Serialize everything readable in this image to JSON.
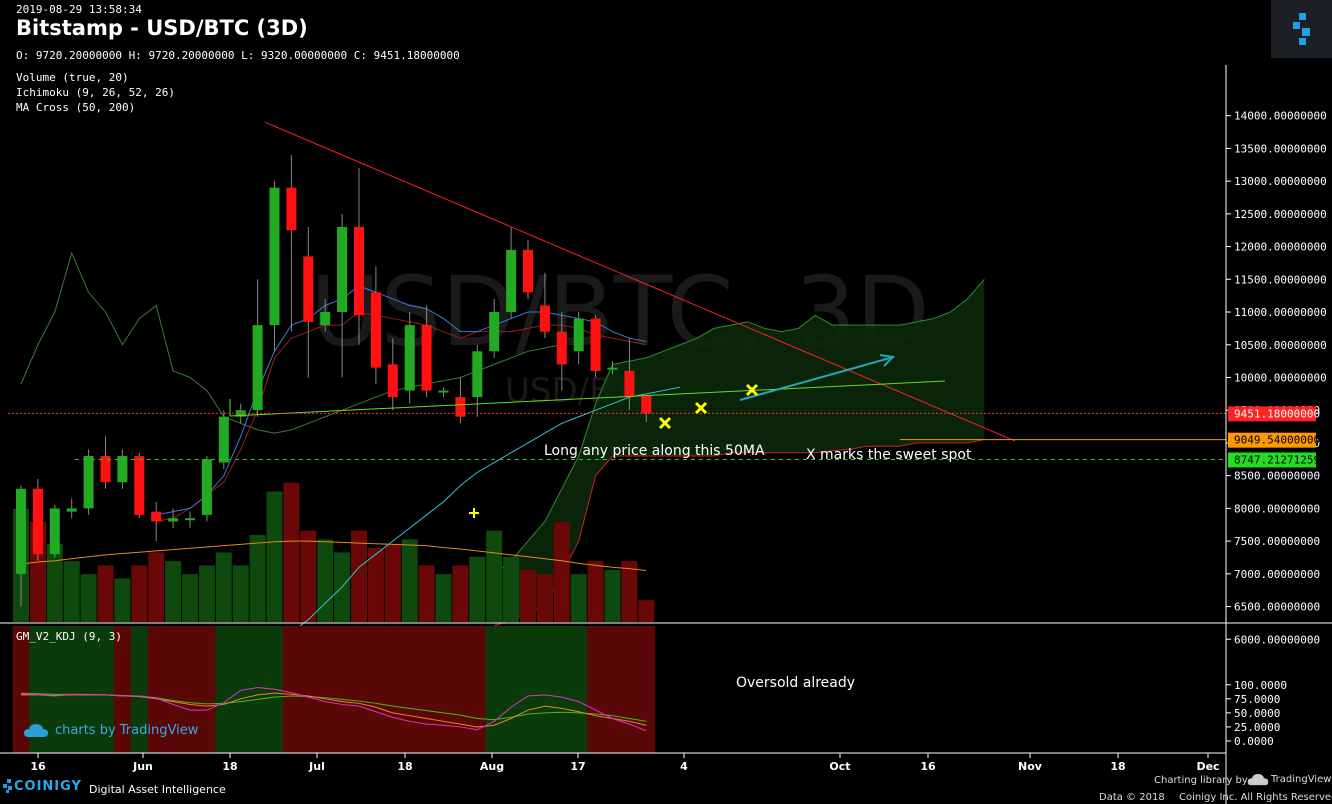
{
  "header": {
    "date": "2019-08-29 13:58:34",
    "title": "Bitstamp - USD/BTC (3D)",
    "ohlc": "O: 9720.20000000 H: 9720.20000000 L: 9320.00000000 C: 9451.18000000"
  },
  "indicators": [
    "Volume (true, 20)",
    "Ichimoku (9, 26, 52, 26)",
    "MA Cross (50, 200)"
  ],
  "watermark": {
    "main": "USD/BTC, 3D",
    "sub": "USD/BTC"
  },
  "colors": {
    "up": "#22aa22",
    "down": "#ff1111",
    "price_label": "#ff2222",
    "orange_label": "#ff9900",
    "green_label": "#22dd22",
    "accent": "#1da1e6"
  },
  "chart_data": {
    "type": "candlestick",
    "y_range": [
      5800,
      14300
    ],
    "y_ticks": [
      "14000.00000000",
      "13500.00000000",
      "13000.00000000",
      "12500.00000000",
      "12000.00000000",
      "11500.00000000",
      "11000.00000000",
      "10500.00000000",
      "10000.00000000",
      "9500.00000000",
      "9000.00000000",
      "8500.00000000",
      "8000.00000000",
      "7500.00000000",
      "7000.00000000",
      "6500.00000000",
      "6000.00000000"
    ],
    "x_ticks": [
      "16",
      "Jun",
      "18",
      "Jul",
      "18",
      "Aug",
      "17",
      "4",
      "Oct",
      "16",
      "Nov",
      "18",
      "Dec"
    ],
    "price_labels": [
      {
        "value": 9451.18,
        "text": "9451.18000000",
        "color": "#ff2222"
      },
      {
        "value": 9049.54,
        "text": "9049.54000000",
        "color": "#ff9900"
      },
      {
        "value": 8747.21271259,
        "text": "8747.21271259",
        "color": "#22dd22"
      }
    ],
    "candles": [
      [
        7000,
        8300,
        6500,
        8350
      ],
      [
        8300,
        7300,
        7200,
        8450
      ],
      [
        7300,
        8000,
        7250,
        8050
      ],
      [
        7950,
        8000,
        7850,
        8150
      ],
      [
        8000,
        8800,
        7900,
        8900
      ],
      [
        8800,
        8400,
        8300,
        9100
      ],
      [
        8400,
        8800,
        8300,
        8900
      ],
      [
        8800,
        7900,
        7850,
        8850
      ],
      [
        7950,
        7800,
        7500,
        8100
      ],
      [
        7800,
        7850,
        7700,
        8000
      ],
      [
        7850,
        7850,
        7700,
        7950
      ],
      [
        7900,
        8750,
        7800,
        8800
      ],
      [
        8700,
        9400,
        8600,
        9500
      ],
      [
        9400,
        9500,
        9300,
        9600
      ],
      [
        9500,
        10800,
        9400,
        11500
      ],
      [
        10800,
        12900,
        10400,
        13000
      ],
      [
        12900,
        12250,
        10700,
        13400
      ],
      [
        11850,
        10850,
        10000,
        12300
      ],
      [
        10800,
        11000,
        10700,
        11200
      ],
      [
        11000,
        12300,
        10000,
        12500
      ],
      [
        12300,
        10950,
        10500,
        13200
      ],
      [
        11300,
        10150,
        9900,
        11700
      ],
      [
        10200,
        9700,
        9500,
        10600
      ],
      [
        9800,
        10800,
        9600,
        11000
      ],
      [
        10800,
        9800,
        9700,
        11100
      ],
      [
        9800,
        9800,
        9700,
        9850
      ],
      [
        9700,
        9400,
        9300,
        10000
      ],
      [
        9700,
        10400,
        9400,
        10500
      ],
      [
        10400,
        11000,
        10300,
        11200
      ],
      [
        11000,
        11950,
        10900,
        12300
      ],
      [
        11950,
        11300,
        11200,
        12100
      ],
      [
        11100,
        10700,
        10600,
        11600
      ],
      [
        10700,
        10200,
        9800,
        11000
      ],
      [
        10400,
        10900,
        10200,
        11000
      ],
      [
        10900,
        10100,
        10000,
        10950
      ],
      [
        10150,
        10150,
        10050,
        10250
      ],
      [
        10100,
        9700,
        9500,
        10600
      ],
      [
        9720.2,
        9451.18,
        9320,
        9720.2
      ]
    ],
    "volume": [
      2600,
      2300,
      1800,
      1400,
      1100,
      1300,
      1000,
      1300,
      1600,
      1400,
      1100,
      1300,
      1600,
      1300,
      2000,
      3000,
      3200,
      2100,
      1900,
      1600,
      2100,
      1700,
      1800,
      1900,
      1300,
      1100,
      1300,
      1500,
      2100,
      1500,
      1200,
      1100,
      2300,
      1100,
      1400,
      1200,
      1400,
      500
    ],
    "tenkan": [
      null,
      null,
      null,
      null,
      null,
      null,
      null,
      null,
      7900,
      7950,
      8000,
      8200,
      8500,
      9100,
      9800,
      10400,
      10800,
      10900,
      11100,
      11200,
      11400,
      11300,
      11200,
      11100,
      11050,
      10900,
      10700,
      10700,
      10800,
      10900,
      11000,
      11000,
      10950,
      10900,
      10850,
      10700,
      10600,
      10550
    ],
    "kijun": [
      null,
      null,
      null,
      null,
      null,
      null,
      null,
      null,
      7800,
      7850,
      8000,
      8200,
      8400,
      8900,
      9500,
      10300,
      10600,
      10700,
      10800,
      10800,
      11000,
      10950,
      10900,
      10850,
      10800,
      10700,
      10600,
      10700,
      10700,
      10700,
      10750,
      10800,
      10800,
      10750,
      10650,
      10600,
      10550,
      10500
    ],
    "chikou": [
      9900,
      10500,
      11000,
      11900,
      11300,
      11000,
      10500,
      10900,
      11100,
      10100,
      10000,
      9800,
      9400,
      9300,
      9200,
      9150,
      9200,
      9300,
      9400,
      9500,
      9600,
      9700,
      9800,
      9850,
      9900,
      9950,
      10000,
      10100,
      10200,
      10300,
      10400,
      10450,
      10500,
      null,
      null,
      null,
      null,
      null
    ],
    "kumo_top": [
      null,
      null,
      null,
      null,
      null,
      null,
      null,
      null,
      null,
      null,
      null,
      null,
      null,
      null,
      null,
      null,
      null,
      null,
      null,
      null,
      null,
      null,
      null,
      null,
      null,
      null,
      null,
      null,
      7000,
      7200,
      7500,
      7800,
      8300,
      8800,
      9600,
      10200,
      10250,
      10300,
      10400,
      10500,
      10600,
      10750,
      10800,
      10850,
      10750,
      10700,
      10750,
      10950,
      10800,
      10800,
      10800,
      10800,
      10800,
      10850,
      10900,
      11000,
      11200,
      11500
    ],
    "kumo_bottom": [
      null,
      null,
      null,
      null,
      null,
      null,
      null,
      null,
      null,
      null,
      null,
      null,
      null,
      null,
      null,
      null,
      null,
      null,
      null,
      null,
      null,
      null,
      null,
      null,
      null,
      null,
      null,
      null,
      6200,
      6300,
      6400,
      6500,
      7000,
      7500,
      8500,
      8800,
      8800,
      8800,
      8800,
      8800,
      8800,
      8800,
      8850,
      8850,
      8850,
      8850,
      8850,
      8850,
      8880,
      8900,
      8950,
      8950,
      8950,
      9000,
      9000,
      9000,
      9000,
      9050
    ],
    "ma50": [
      null,
      null,
      null,
      null,
      null,
      null,
      null,
      null,
      null,
      null,
      null,
      null,
      null,
      null,
      null,
      5900,
      6100,
      6300,
      6550,
      6800,
      7100,
      7300,
      7500,
      7700,
      7900,
      8100,
      8350,
      8550,
      8700,
      8850,
      9000,
      9150,
      9300,
      9400,
      9500,
      9600,
      9700,
      9750,
      9800,
      9850
    ],
    "ma200": [
      7150,
      7180,
      7200,
      7230,
      7260,
      7290,
      7310,
      7330,
      7350,
      7370,
      7390,
      7410,
      7430,
      7450,
      7470,
      7490,
      7500,
      7500,
      7490,
      7480,
      7470,
      7460,
      7450,
      7440,
      7430,
      7400,
      7380,
      7350,
      7320,
      7290,
      7260,
      7230,
      7200,
      7160,
      7130,
      7100,
      7080,
      7050
    ],
    "kdj": {
      "k": [
        84,
        82,
        80,
        83,
        82,
        82,
        80,
        80,
        76,
        65,
        55,
        55,
        68,
        90,
        95,
        92,
        86,
        78,
        70,
        65,
        62,
        52,
        42,
        35,
        30,
        28,
        25,
        20,
        35,
        60,
        80,
        82,
        78,
        70,
        55,
        40,
        30,
        18
      ],
      "d": [
        82,
        82,
        81,
        82,
        82,
        82,
        80,
        79,
        75,
        70,
        65,
        62,
        65,
        75,
        82,
        85,
        83,
        80,
        75,
        70,
        67,
        60,
        50,
        45,
        40,
        35,
        30,
        25,
        28,
        40,
        55,
        62,
        58,
        52,
        45,
        40,
        35,
        28
      ],
      "j": [
        85,
        84,
        83,
        83,
        83,
        82,
        81,
        80,
        77,
        72,
        68,
        66,
        67,
        70,
        74,
        78,
        80,
        79,
        77,
        74,
        71,
        67,
        62,
        58,
        54,
        50,
        46,
        40,
        38,
        42,
        48,
        50,
        51,
        50,
        48,
        45,
        40,
        35
      ],
      "y_ticks": [
        "100.0000",
        "75.0000",
        "50.0000",
        "25.0000",
        "0.0000"
      ],
      "bg": [
        "r",
        "g",
        "g",
        "g",
        "g",
        "g",
        "r",
        "g",
        "r",
        "r",
        "r",
        "r",
        "g",
        "g",
        "g",
        "g",
        "r",
        "r",
        "r",
        "r",
        "r",
        "r",
        "r",
        "r",
        "r",
        "r",
        "r",
        "r",
        "g",
        "g",
        "g",
        "g",
        "g",
        "g",
        "r",
        "r",
        "r",
        "r"
      ]
    },
    "annotations": [
      "Long any price along this 50MA",
      "X marks the sweet spot",
      "Oversold already"
    ]
  },
  "panes": {
    "kdj_title": "GM_V2_KDJ (9, 3)"
  },
  "footer": {
    "tv_badge": "charts by TradingView",
    "coinigy": "COINIGY",
    "coinigy_sub": "Digital Asset Intelligence",
    "charting_library": "Charting library by",
    "tradingview": "TradingView",
    "copyright": "Data © 2018",
    "copyright2": "Coinigy Inc. All Rights Reserved."
  }
}
